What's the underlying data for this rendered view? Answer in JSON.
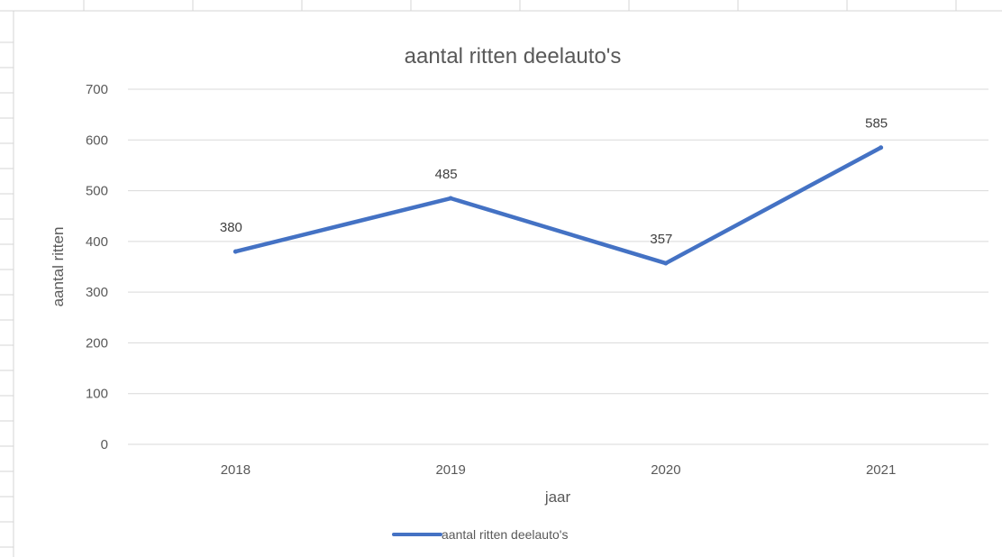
{
  "chart_data": {
    "type": "line",
    "title": "aantal ritten deelauto's",
    "xlabel": "jaar",
    "ylabel": "aantal ritten",
    "categories": [
      "2018",
      "2019",
      "2020",
      "2021"
    ],
    "series": [
      {
        "name": "aantal ritten deelauto's",
        "values": [
          380,
          485,
          357,
          585
        ],
        "color": "#4472C4"
      }
    ],
    "ylim": [
      0,
      700
    ],
    "yticks": [
      "0",
      "100",
      "200",
      "300",
      "400",
      "500",
      "600",
      "700"
    ],
    "data_labels": [
      "380",
      "485",
      "357",
      "585"
    ],
    "grid": true,
    "legend": "bottom",
    "gridline_color": "#d9d9d9"
  }
}
